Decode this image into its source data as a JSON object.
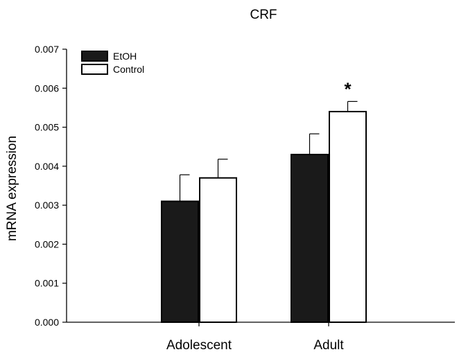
{
  "chart_data": {
    "type": "bar",
    "title": "CRF",
    "xlabel": "",
    "ylabel": "mRNA expression",
    "ylim": [
      0,
      0.007
    ],
    "yticks": [
      "0.000",
      "0.001",
      "0.002",
      "0.003",
      "0.004",
      "0.005",
      "0.006",
      "0.007"
    ],
    "categories": [
      "Adolescent",
      "Adult"
    ],
    "series": [
      {
        "name": "EtOH",
        "color": "#1a1a1a",
        "values": [
          0.0031,
          0.0043
        ],
        "errors": [
          0.00068,
          0.00053
        ]
      },
      {
        "name": "Control",
        "color": "#ffffff",
        "values": [
          0.0037,
          0.0054
        ],
        "errors": [
          0.00048,
          0.00026
        ]
      }
    ],
    "annotations": [
      {
        "text": "*",
        "category": "Adult",
        "series": "Control"
      }
    ],
    "legend_position": "top-left",
    "grid": false
  }
}
